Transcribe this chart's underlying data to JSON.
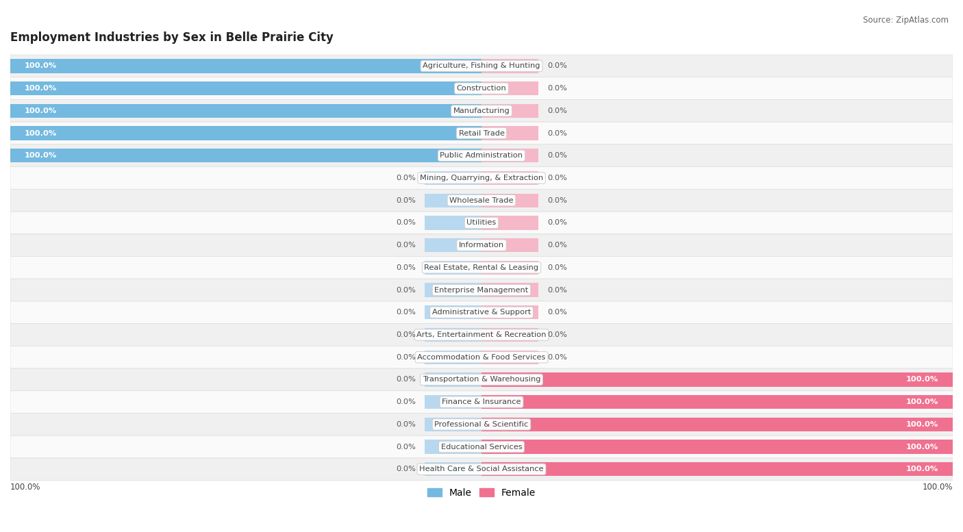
{
  "title": "Employment Industries by Sex in Belle Prairie City",
  "source": "Source: ZipAtlas.com",
  "industries": [
    "Agriculture, Fishing & Hunting",
    "Construction",
    "Manufacturing",
    "Retail Trade",
    "Public Administration",
    "Mining, Quarrying, & Extraction",
    "Wholesale Trade",
    "Utilities",
    "Information",
    "Real Estate, Rental & Leasing",
    "Enterprise Management",
    "Administrative & Support",
    "Arts, Entertainment & Recreation",
    "Accommodation & Food Services",
    "Transportation & Warehousing",
    "Finance & Insurance",
    "Professional & Scientific",
    "Educational Services",
    "Health Care & Social Assistance"
  ],
  "male_values": [
    100.0,
    100.0,
    100.0,
    100.0,
    100.0,
    0.0,
    0.0,
    0.0,
    0.0,
    0.0,
    0.0,
    0.0,
    0.0,
    0.0,
    0.0,
    0.0,
    0.0,
    0.0,
    0.0
  ],
  "female_values": [
    0.0,
    0.0,
    0.0,
    0.0,
    0.0,
    0.0,
    0.0,
    0.0,
    0.0,
    0.0,
    0.0,
    0.0,
    0.0,
    0.0,
    100.0,
    100.0,
    100.0,
    100.0,
    100.0
  ],
  "male_color": "#74b9e0",
  "female_color": "#f07090",
  "male_stub_color": "#b8d8ef",
  "female_stub_color": "#f5b8c8",
  "row_bg_even": "#f0f0f0",
  "row_bg_odd": "#fafafa",
  "title_color": "#222222",
  "source_color": "#666666",
  "label_color": "#444444",
  "value_color_inside": "#ffffff",
  "value_color_outside": "#555555",
  "stub_size": 12.0,
  "title_fontsize": 12,
  "label_fontsize": 8.2,
  "value_fontsize": 8.2,
  "legend_fontsize": 10,
  "legend_male": "Male",
  "legend_female": "Female"
}
